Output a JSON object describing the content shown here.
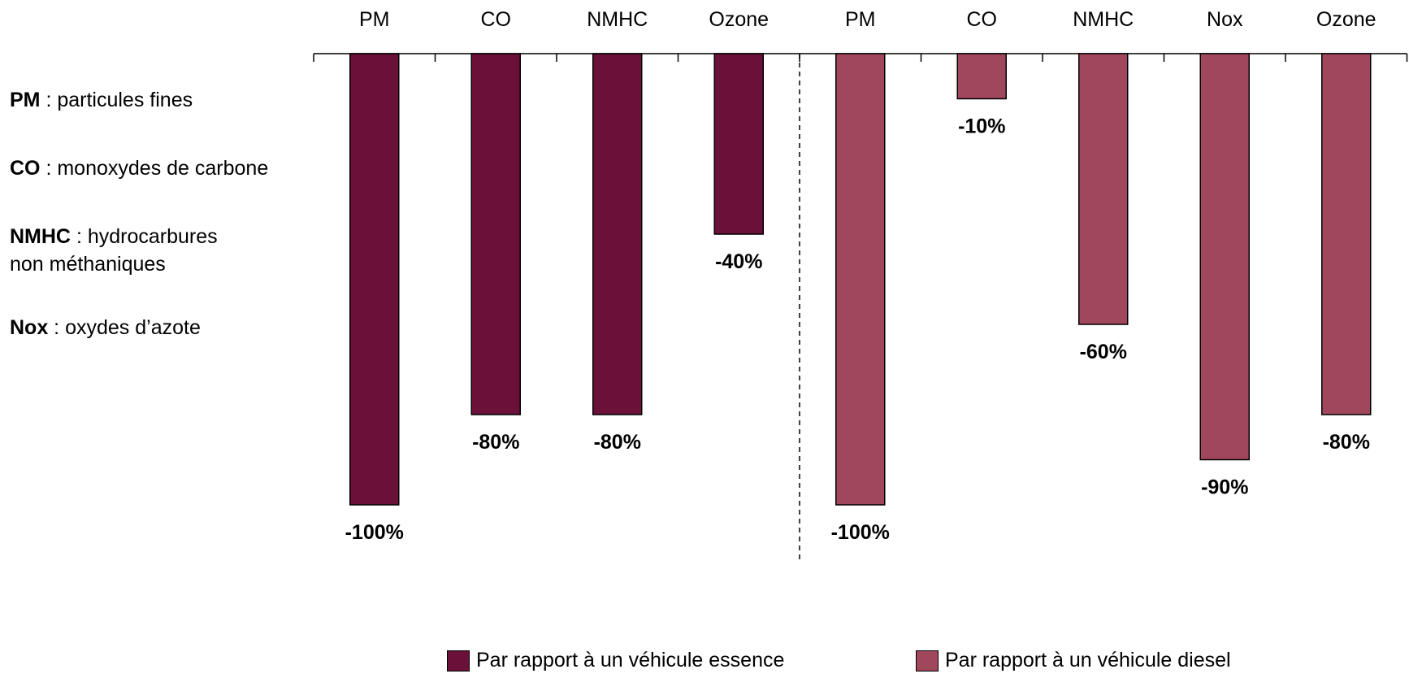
{
  "glossary": [
    {
      "abbr": "PM",
      "sep": " : ",
      "desc": "particules fines"
    },
    {
      "abbr": "CO",
      "sep": " : ",
      "desc": "monoxydes de carbone"
    },
    {
      "abbr": "NMHC",
      "sep": " : ",
      "desc": "hydrocarbures",
      "desc2": "non méthaniques"
    },
    {
      "abbr": "Nox",
      "sep": " : ",
      "desc": "oxydes d’azote"
    }
  ],
  "colors": {
    "essence": "#6b1039",
    "diesel": "#a1475c"
  },
  "chart_data": {
    "type": "bar",
    "title": "",
    "xlabel": "",
    "ylabel": "",
    "ylim": [
      -100,
      0
    ],
    "grid": false,
    "legend_position": "bottom",
    "series": [
      {
        "name": "Par rapport à un véhicule essence",
        "categories": [
          "PM",
          "CO",
          "NMHC",
          "Ozone"
        ],
        "values": [
          -100,
          -80,
          -80,
          -40
        ],
        "labels": [
          "-100%",
          "-80%",
          "-80%",
          "-40%"
        ]
      },
      {
        "name": "Par rapport à un véhicule diesel",
        "categories": [
          "PM",
          "CO",
          "NMHC",
          "Nox",
          "Ozone"
        ],
        "values": [
          -100,
          -10,
          -60,
          -90,
          -80
        ],
        "labels": [
          "-100%",
          "-10%",
          "-60%",
          "-90%",
          "-80%"
        ]
      }
    ]
  }
}
